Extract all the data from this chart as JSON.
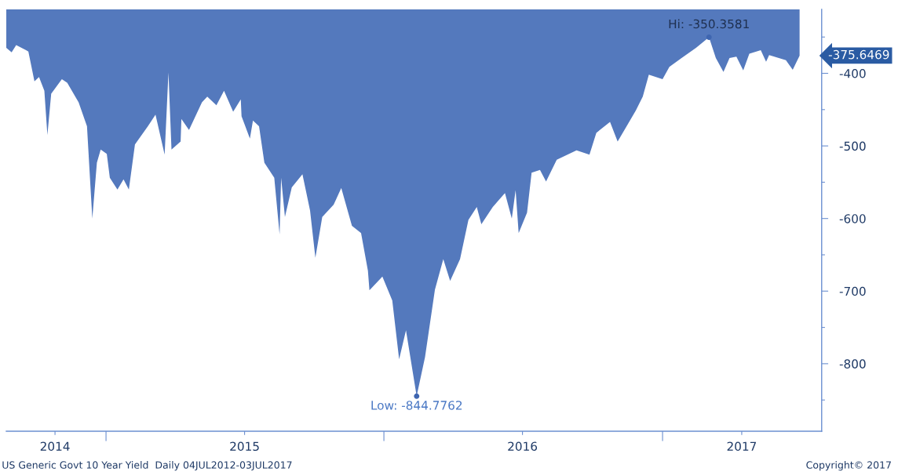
{
  "chart_data": {
    "type": "area",
    "x": [
      "2014-08-23",
      "2014-08-30",
      "2014-09-05",
      "2014-09-18",
      "2014-09-21",
      "2014-09-29",
      "2014-10-05",
      "2014-10-12",
      "2014-10-16",
      "2014-10-21",
      "2014-11-04",
      "2014-11-11",
      "2014-11-26",
      "2014-12-07",
      "2014-12-14",
      "2014-12-20",
      "2014-12-25",
      "2015-01-02",
      "2015-01-06",
      "2015-01-16",
      "2015-01-24",
      "2015-01-31",
      "2015-02-08",
      "2015-02-25",
      "2015-03-07",
      "2015-03-19",
      "2015-03-24",
      "2015-03-28",
      "2015-04-09",
      "2015-04-10",
      "2015-04-20",
      "2015-05-07",
      "2015-05-14",
      "2015-05-26",
      "2015-06-05",
      "2015-06-17",
      "2015-06-27",
      "2015-06-28",
      "2015-07-09",
      "2015-07-13",
      "2015-07-21",
      "2015-07-28",
      "2015-08-10",
      "2015-08-17",
      "2015-08-19",
      "2015-08-24",
      "2015-09-02",
      "2015-09-16",
      "2015-09-26",
      "2015-10-03",
      "2015-10-12",
      "2015-10-27",
      "2015-11-06",
      "2015-11-20",
      "2015-12-02",
      "2015-12-11",
      "2015-12-13",
      "2015-12-30",
      "2016-01-12",
      "2016-01-21",
      "2016-01-30",
      "2016-02-13",
      "2016-02-24",
      "2016-03-08",
      "2016-03-19",
      "2016-03-28",
      "2016-04-10",
      "2016-04-21",
      "2016-05-02",
      "2016-05-08",
      "2016-05-23",
      "2016-06-08",
      "2016-06-17",
      "2016-06-22",
      "2016-06-26",
      "2016-07-07",
      "2016-07-13",
      "2016-07-24",
      "2016-08-01",
      "2016-08-15",
      "2016-09-10",
      "2016-09-27",
      "2016-10-06",
      "2016-10-24",
      "2016-11-03",
      "2016-11-13",
      "2016-11-27",
      "2016-12-06",
      "2016-12-14",
      "2017-01-01",
      "2017-01-10",
      "2017-01-26",
      "2017-02-14",
      "2017-03-03",
      "2017-03-12",
      "2017-03-22",
      "2017-03-30",
      "2017-04-08",
      "2017-04-17",
      "2017-04-25",
      "2017-05-10",
      "2017-05-17",
      "2017-05-21",
      "2017-06-12",
      "2017-06-21",
      "2017-06-30"
    ],
    "series": [
      {
        "color": "#5479bd",
        "values": [
          -365,
          -371,
          -361,
          -368,
          -370,
          -411,
          -405,
          -424,
          -485,
          -428,
          -408,
          -413,
          -440,
          -473,
          -600,
          -523,
          -505,
          -511,
          -544,
          -560,
          -546,
          -560,
          -498,
          -473,
          -457,
          -512,
          -399,
          -505,
          -494,
          -463,
          -478,
          -440,
          -432,
          -444,
          -424,
          -453,
          -436,
          -459,
          -490,
          -465,
          -473,
          -523,
          -544,
          -622,
          -544,
          -598,
          -557,
          -539,
          -589,
          -654,
          -598,
          -581,
          -558,
          -610,
          -620,
          -672,
          -699,
          -680,
          -713,
          -794,
          -754,
          -844.7762,
          -791,
          -698,
          -656,
          -686,
          -656,
          -602,
          -584,
          -608,
          -584,
          -565,
          -600,
          -561,
          -620,
          -592,
          -537,
          -533,
          -549,
          -519,
          -506,
          -512,
          -482,
          -467,
          -494,
          -476,
          -451,
          -432,
          -402,
          -408,
          -391,
          -379,
          -365,
          -350.3581,
          -379,
          -398,
          -379,
          -377,
          -396,
          -373,
          -368,
          -384,
          -375,
          -382,
          -395,
          -375.6469
        ]
      }
    ],
    "xlim": [
      "2014-08-23",
      "2017-07-29"
    ],
    "xticks": [
      {
        "value": "2014-10-26",
        "label": "2014"
      },
      {
        "value": "2015-01-01",
        "label": null
      },
      {
        "value": "2015-07-02",
        "label": "2015"
      },
      {
        "value": "2016-01-01",
        "label": null
      },
      {
        "value": "2016-07-01",
        "label": "2016"
      },
      {
        "value": "2017-01-01",
        "label": null
      },
      {
        "value": "2017-04-15",
        "label": "2017"
      }
    ],
    "ylim": [
      -893,
      -312
    ],
    "yticks": [
      {
        "value": -350,
        "label": null
      },
      -400,
      {
        "value": -450,
        "label": null
      },
      -500,
      {
        "value": -550,
        "label": null
      },
      -600,
      {
        "value": -650,
        "label": null
      },
      -700,
      {
        "value": -750,
        "label": null
      },
      -800,
      {
        "value": -850,
        "label": null
      }
    ],
    "grid": false,
    "legend": false,
    "annotations": [
      {
        "text": "Hi: -350.3581",
        "x": "2017-03-03",
        "y": -350.3581
      },
      {
        "text": "Low: -844.7762",
        "x": "2016-02-13",
        "y": -844.7762
      },
      {
        "text": "-375.6469",
        "x": "2017-06-30",
        "y": -375.6469
      },
      "US Generic Govt 10 Year Yield  Daily 04JUL2012-03JUL2017",
      "Copyright© 2017"
    ]
  }
}
